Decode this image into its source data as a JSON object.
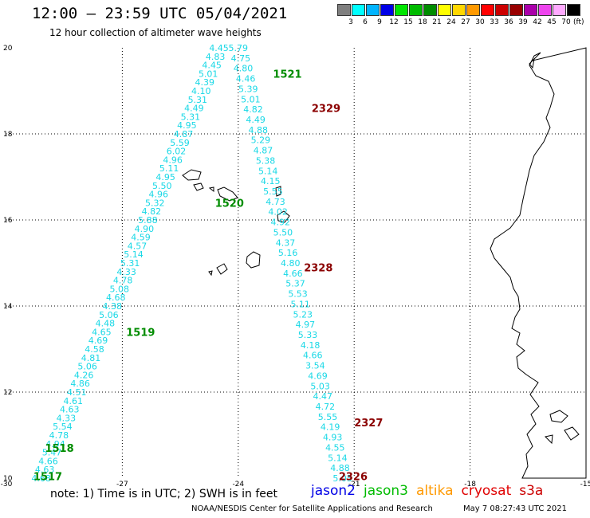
{
  "header": {
    "title": "12:00 – 23:59 UTC 05/04/2021",
    "subtitle": "12 hour collection of altimeter wave heights"
  },
  "color_scale": {
    "swatches": [
      {
        "label": "3",
        "color": "#7f7f7f"
      },
      {
        "label": "6",
        "color": "#00ffff"
      },
      {
        "label": "9",
        "color": "#00b4ff"
      },
      {
        "label": "12",
        "color": "#0000e6"
      },
      {
        "label": "15",
        "color": "#00e600"
      },
      {
        "label": "18",
        "color": "#00bb00"
      },
      {
        "label": "21",
        "color": "#008c00"
      },
      {
        "label": "24",
        "color": "#ffff00"
      },
      {
        "label": "27",
        "color": "#ffd700"
      },
      {
        "label": "30",
        "color": "#ff9900"
      },
      {
        "label": "33",
        "color": "#ff0000"
      },
      {
        "label": "36",
        "color": "#cc0000"
      },
      {
        "label": "39",
        "color": "#990000"
      },
      {
        "label": "42",
        "color": "#aa00aa"
      },
      {
        "label": "45",
        "color": "#ee44ee"
      },
      {
        "label": "70",
        "color": "#ffaaff"
      },
      {
        "label": "",
        "color": "#000000"
      }
    ],
    "unit": "(ft)"
  },
  "axes": {
    "y_ticks": [
      "20",
      "18",
      "16",
      "14",
      "12",
      "10"
    ],
    "x_ticks": [
      "-30",
      "-27",
      "-24",
      "-21",
      "-18",
      "-15"
    ]
  },
  "tracks": {
    "jason3_ascending": {
      "values": [
        "4.45",
        "4.83",
        "4.45",
        "5.01",
        "4.39",
        "4.10",
        "5.31",
        "4.49",
        "5.31",
        "4.95",
        "4.87",
        "5.59",
        "6.02",
        "4.96",
        "5.11",
        "4.95",
        "5.50",
        "4.96",
        "5.32",
        "4.82",
        "5.88",
        "4.90",
        "4.59",
        "4.57",
        "5.14",
        "5.31",
        "4.33",
        "4.78",
        "5.08",
        "4.68",
        "4.38",
        "5.06",
        "4.48",
        "4.65",
        "4.69",
        "4.58",
        "4.81",
        "5.06",
        "4.26",
        "4.86",
        "4.51",
        "4.61",
        "4.63",
        "4.33",
        "5.54",
        "4.78",
        "4.94",
        "5.47",
        "4.66",
        "4.63",
        "4.68"
      ],
      "pass_labels": [
        {
          "text": "1521",
          "lon": -23.1,
          "lat": 19.4
        },
        {
          "text": "1520",
          "lon": -24.6,
          "lat": 16.4
        },
        {
          "text": "1519",
          "lon": -26.9,
          "lat": 13.4
        },
        {
          "text": "1518",
          "lon": -29.0,
          "lat": 10.7
        },
        {
          "text": "1517",
          "lon": -29.3,
          "lat": 10.05
        }
      ]
    },
    "cryosat_descending": {
      "values": [
        "5.79",
        "4.75",
        "4.80",
        "4.46",
        "5.39",
        "5.01",
        "4.82",
        "4.49",
        "4.88",
        "5.29",
        "4.87",
        "5.38",
        "5.14",
        "4.15",
        "5.55",
        "4.73",
        "4.02",
        "4.92",
        "5.50",
        "4.37",
        "5.16",
        "4.80",
        "4.66",
        "5.37",
        "5.53",
        "5.11",
        "5.23",
        "4.97",
        "5.33",
        "4.18",
        "4.66",
        "3.54",
        "4.69",
        "5.03",
        "4.47",
        "4.72",
        "5.55",
        "4.19",
        "4.93",
        "4.55",
        "5.14",
        "4.88",
        "5.05"
      ],
      "pass_labels": [
        {
          "text": "2329",
          "lon": -22.1,
          "lat": 18.6
        },
        {
          "text": "2328",
          "lon": -22.3,
          "lat": 14.9
        },
        {
          "text": "2327",
          "lon": -21.0,
          "lat": 11.3
        },
        {
          "text": "2326",
          "lon": -21.4,
          "lat": 10.05
        }
      ]
    }
  },
  "colors": {
    "value_text": "#19d8e6",
    "jason3": "#008c00",
    "cryosat": "#8b0000"
  },
  "note": "note:  1) Time is in UTC;  2) SWH is in feet",
  "legend": [
    {
      "label": "jason2",
      "color": "#0000e6"
    },
    {
      "label": "jason3",
      "color": "#00bb00"
    },
    {
      "label": "altika",
      "color": "#ff9900"
    },
    {
      "label": "cryosat",
      "color": "#e00000"
    },
    {
      "label": "s3a",
      "color": "#cc0000"
    }
  ],
  "footer": {
    "credit": "NOAA/NESDIS Center for Satellite Applications and Research",
    "generated": "May  7 08:27:43 UTC 2021"
  }
}
